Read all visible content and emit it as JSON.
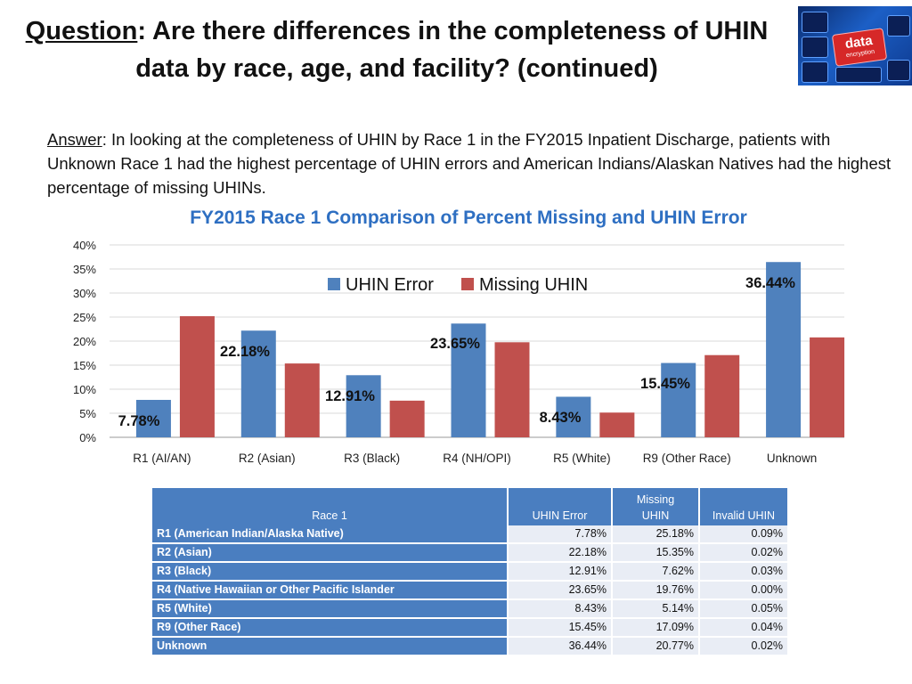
{
  "header": {
    "question_label": "Question",
    "question_text": ":  Are there differences in the completeness of UHIN data by race, age, and facility? (continued)"
  },
  "thumbnail": {
    "icon": "data-encryption-keyboard-icon",
    "key_text": "data",
    "key_subtext": "encryption"
  },
  "answer": {
    "label": "Answer",
    "text": ": In looking at the completeness of UHIN by Race 1 in the FY2015 Inpatient Discharge,  patients with Unknown Race 1 had the highest percentage of UHIN errors and American Indians/Alaskan Natives had the highest percentage of missing UHINs."
  },
  "chart_data": {
    "type": "bar",
    "title": "FY2015 Race 1 Comparison of Percent Missing and UHIN Error",
    "categories": [
      "R1 (AI/AN)",
      "R2 (Asian)",
      "R3 (Black)",
      "R4 (NH/OPI)",
      "R5 (White)",
      "R9 (Other Race)",
      "Unknown"
    ],
    "series": [
      {
        "name": "UHIN Error",
        "color": "#4f81bd",
        "values": [
          7.78,
          22.18,
          12.91,
          23.65,
          8.43,
          15.45,
          36.44
        ]
      },
      {
        "name": "Missing UHIN",
        "color": "#c0504d",
        "values": [
          25.18,
          15.35,
          7.62,
          19.76,
          5.14,
          17.09,
          20.77
        ]
      }
    ],
    "data_labels": [
      "7.78%",
      "22.18%",
      "12.91%",
      "23.65%",
      "8.43%",
      "15.45%",
      "36.44%"
    ],
    "yticks": [
      "0%",
      "5%",
      "10%",
      "15%",
      "20%",
      "25%",
      "30%",
      "35%",
      "40%"
    ],
    "ylim": [
      0,
      40
    ],
    "grid": true,
    "legend_position": "top-center"
  },
  "table": {
    "headers": {
      "race": "Race 1",
      "uhin_error": "UHIN Error",
      "missing_line1": "Missing",
      "missing_line2": "UHIN",
      "invalid": "Invalid UHIN"
    },
    "rows": [
      {
        "label": "R1 (American Indian/Alaska Native)",
        "uhin_error": "7.78%",
        "missing": "25.18%",
        "invalid": "0.09%"
      },
      {
        "label": "R2 (Asian)",
        "uhin_error": "22.18%",
        "missing": "15.35%",
        "invalid": "0.02%"
      },
      {
        "label": "R3 (Black)",
        "uhin_error": "12.91%",
        "missing": "7.62%",
        "invalid": "0.03%"
      },
      {
        "label": "R4 (Native Hawaiian or Other Pacific Islander",
        "uhin_error": "23.65%",
        "missing": "19.76%",
        "invalid": "0.00%"
      },
      {
        "label": "R5 (White)",
        "uhin_error": "8.43%",
        "missing": "5.14%",
        "invalid": "0.05%"
      },
      {
        "label": "R9 (Other Race)",
        "uhin_error": "15.45%",
        "missing": "17.09%",
        "invalid": "0.04%"
      },
      {
        "label": "Unknown",
        "uhin_error": "36.44%",
        "missing": "20.77%",
        "invalid": "0.02%"
      }
    ]
  }
}
